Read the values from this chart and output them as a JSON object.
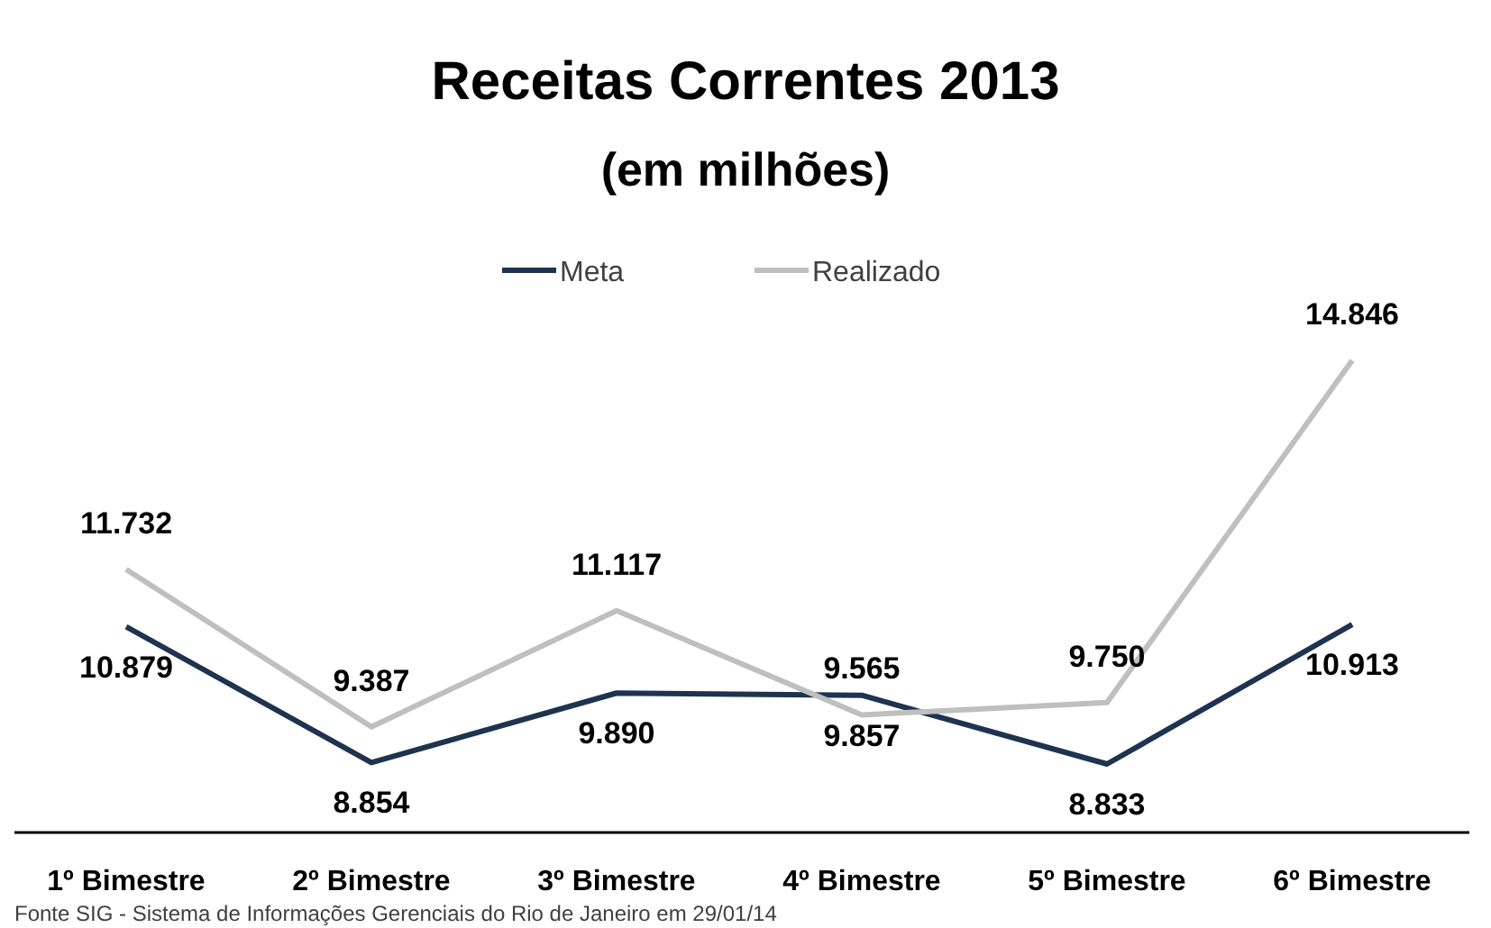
{
  "chart_data": {
    "type": "line",
    "title": "Receitas Correntes 2013",
    "subtitle": "(em milhões)",
    "categories": [
      "1º Bimestre",
      "2º Bimestre",
      "3º Bimestre",
      "4º Bimestre",
      "5º Bimestre",
      "6º Bimestre"
    ],
    "series": [
      {
        "name": "Meta",
        "color": "#1f3350",
        "values": [
          10879,
          8854,
          9890,
          9857,
          8833,
          10913
        ],
        "value_labels": [
          "10.879",
          "8.854",
          "9.890",
          "9.857",
          "8.833",
          "10.913"
        ]
      },
      {
        "name": "Realizado",
        "color": "#bfbfbf",
        "values": [
          11732,
          9387,
          11117,
          9565,
          9750,
          14846
        ],
        "value_labels": [
          "11.732",
          "9.387",
          "11.117",
          "9.565",
          "9.750",
          "14.846"
        ]
      }
    ],
    "legend": "top",
    "marker": "none",
    "line_style": "solid",
    "annotations": [
      "Fonte SIG - Sistema de Informações Gerenciais do Rio de Janeiro  em 29/01/14"
    ]
  }
}
